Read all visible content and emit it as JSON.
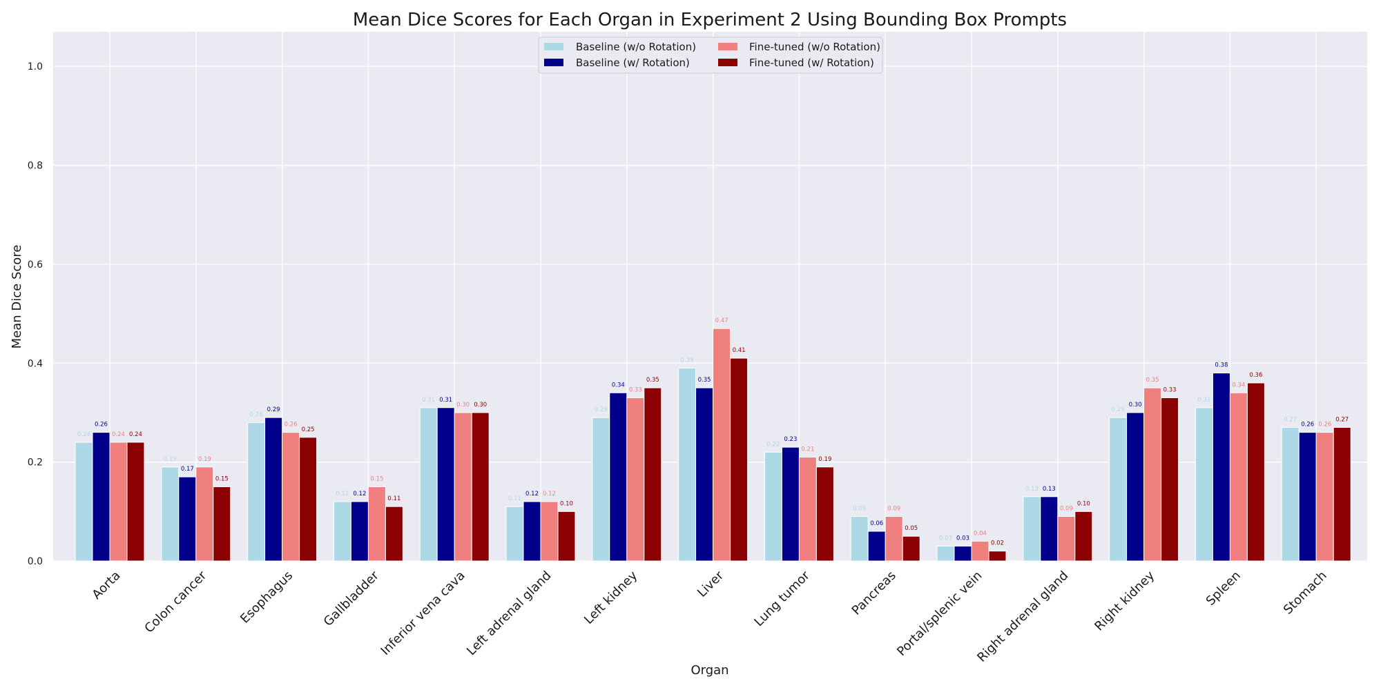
{
  "chart_data": {
    "type": "bar",
    "title": "Mean Dice Scores for Each Organ in Experiment 2 Using Bounding Box Prompts",
    "xlabel": "Organ",
    "ylabel": "Mean Dice Score",
    "ylim": [
      0,
      1.07
    ],
    "yticks": [
      "0.0",
      "0.2",
      "0.4",
      "0.6",
      "0.8",
      "1.0"
    ],
    "grid": true,
    "legend_position": "top-center",
    "categories": [
      "Aorta",
      "Colon cancer",
      "Esophagus",
      "Gallbladder",
      "Inferior vena cava",
      "Left adrenal gland",
      "Left kidney",
      "Liver",
      "Lung tumor",
      "Pancreas",
      "Portal/splenic vein",
      "Right adrenal gland",
      "Right kidney",
      "Spleen",
      "Stomach"
    ],
    "series": [
      {
        "name": "Baseline (w/o Rotation)",
        "color": "#add8e6",
        "values": [
          0.24,
          0.19,
          0.28,
          0.12,
          0.31,
          0.11,
          0.29,
          0.39,
          0.22,
          0.09,
          0.03,
          0.13,
          0.29,
          0.31,
          0.27
        ]
      },
      {
        "name": "Baseline (w/ Rotation)",
        "color": "#00008b",
        "values": [
          0.26,
          0.17,
          0.29,
          0.12,
          0.31,
          0.12,
          0.34,
          0.35,
          0.23,
          0.06,
          0.03,
          0.13,
          0.3,
          0.38,
          0.26
        ]
      },
      {
        "name": "Fine-tuned (w/o Rotation)",
        "color": "#f08080",
        "values": [
          0.24,
          0.19,
          0.26,
          0.15,
          0.3,
          0.12,
          0.33,
          0.47,
          0.21,
          0.09,
          0.04,
          0.09,
          0.35,
          0.34,
          0.26
        ]
      },
      {
        "name": "Fine-tuned (w/ Rotation)",
        "color": "#8b0000",
        "values": [
          0.24,
          0.15,
          0.25,
          0.11,
          0.3,
          0.1,
          0.35,
          0.41,
          0.19,
          0.05,
          0.02,
          0.1,
          0.33,
          0.36,
          0.27
        ]
      }
    ]
  }
}
